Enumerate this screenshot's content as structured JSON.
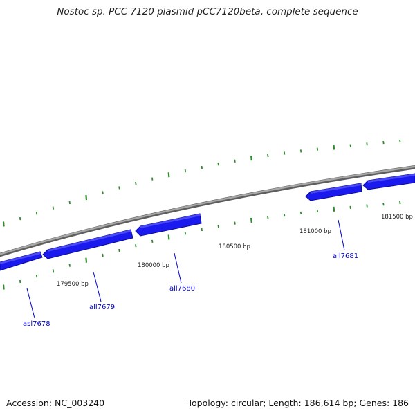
{
  "title": "Nostoc sp. PCC 7120 plasmid pCC7120beta, complete sequence",
  "footer": {
    "accession": "Accession: NC_003240",
    "summary": "Topology: circular; Length: 186,614 bp; Genes: 186"
  },
  "colors": {
    "backbone": "#8c8c8c",
    "gene": "#1a1aee",
    "tick": "#2e8b2e",
    "gene_label": "#0000cc",
    "text": "#222222"
  },
  "genes": [
    {
      "id": "asl7678",
      "label": "asl7678",
      "strand": "-"
    },
    {
      "id": "all7679",
      "label": "all7679",
      "strand": "-"
    },
    {
      "id": "all7680",
      "label": "all7680",
      "strand": "-"
    },
    {
      "id": "all7681",
      "label": "all7681",
      "strand": "-"
    },
    {
      "id": "next",
      "label": "",
      "strand": "-"
    }
  ],
  "position_labels": [
    "179500 bp",
    "180000 bp",
    "180500 bp",
    "181000 bp",
    "181500 bp"
  ]
}
